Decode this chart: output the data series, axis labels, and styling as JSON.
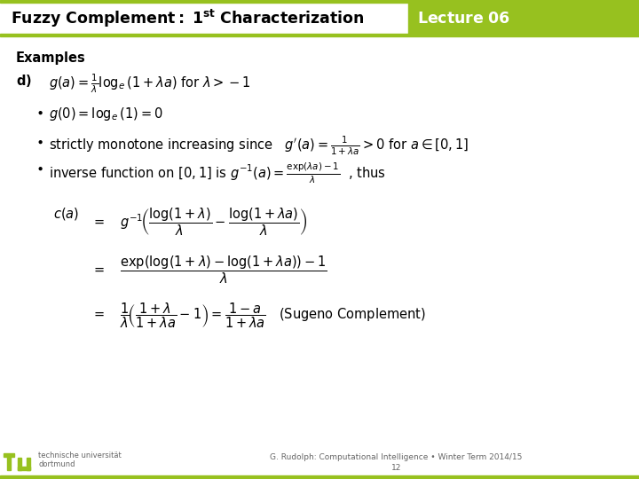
{
  "header_green": "#97c11f",
  "bg_color": "#f0efeb",
  "white": "#ffffff",
  "black": "#000000",
  "gray": "#666666",
  "footer_text": "G. Rudolph: Computational Intelligence • Winter Term 2014/15",
  "footer_page": "12",
  "tu_text1": "technische universität",
  "tu_text2": "dortmund"
}
